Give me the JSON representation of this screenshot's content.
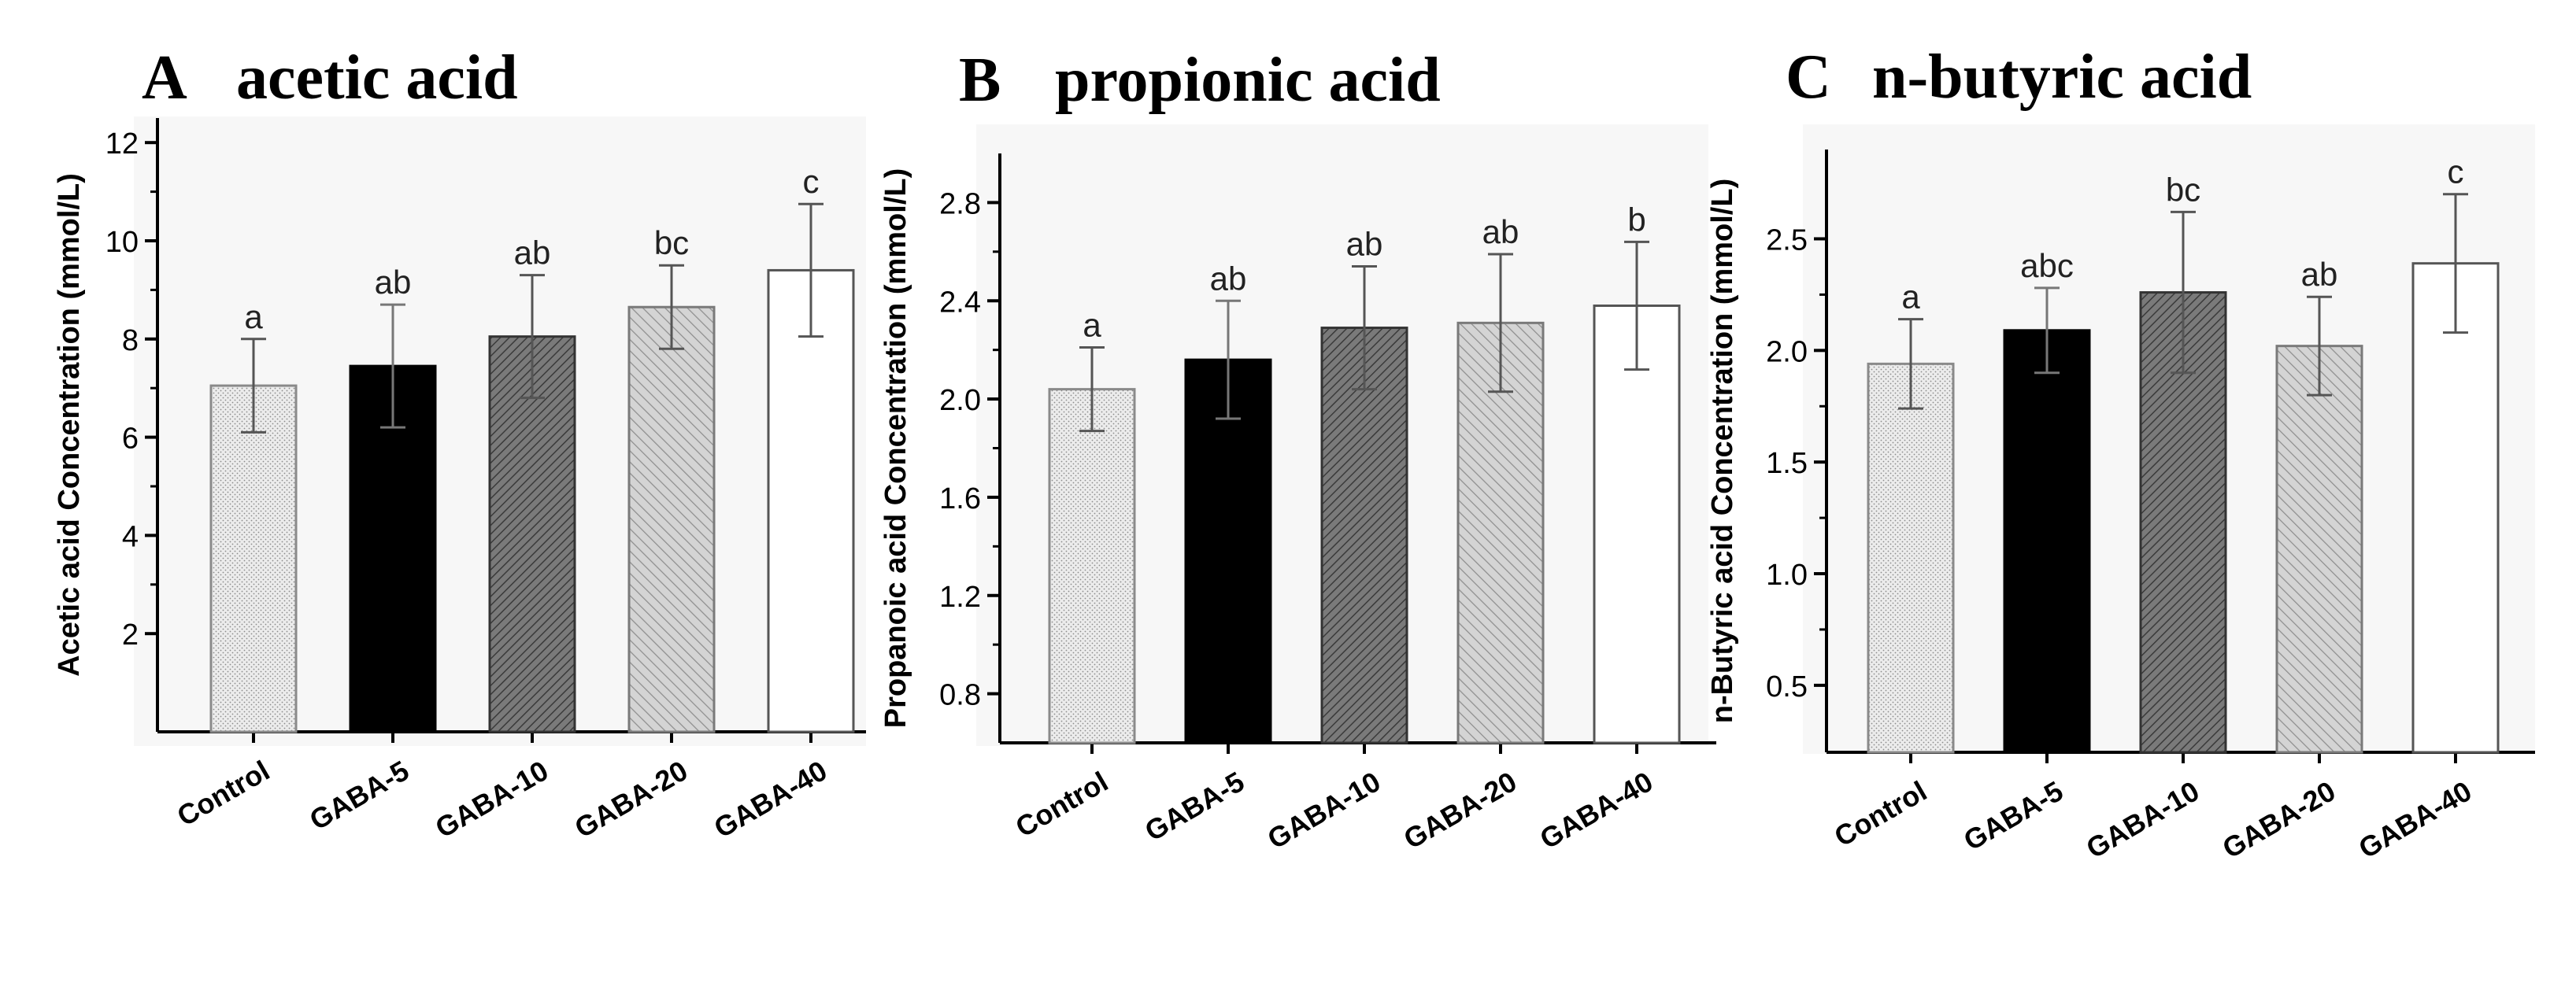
{
  "chart_data": [
    {
      "type": "bar",
      "panel_letter": "A",
      "title": "acetic acid",
      "xlabel": "",
      "ylabel": "Acetic  acid  Concentration (mmol/L)",
      "categories": [
        "Control",
        "GABA-5",
        "GABA-10",
        "GABA-20",
        "GABA-40"
      ],
      "values": [
        7.05,
        7.45,
        8.05,
        8.65,
        9.4
      ],
      "errors": [
        0.95,
        1.25,
        1.25,
        0.85,
        1.35
      ],
      "significance": [
        "a",
        "ab",
        "ab",
        "bc",
        "c"
      ],
      "ylim": [
        0,
        12.5
      ],
      "yticks": [
        2,
        4,
        6,
        8,
        10,
        12
      ],
      "ytick_labels": [
        "2",
        "4",
        "6",
        "8",
        "10",
        "12"
      ],
      "grid": false,
      "legend": "none"
    },
    {
      "type": "bar",
      "panel_letter": "B",
      "title": "propionic acid",
      "xlabel": "",
      "ylabel": "Propanoic  acid  Concentration (mmol/L)",
      "categories": [
        "Control",
        "GABA-5",
        "GABA-10",
        "GABA-20",
        "GABA-40"
      ],
      "values": [
        2.04,
        2.16,
        2.29,
        2.31,
        2.38
      ],
      "errors": [
        0.17,
        0.24,
        0.25,
        0.28,
        0.26
      ],
      "significance": [
        "a",
        "ab",
        "ab",
        "ab",
        "b"
      ],
      "ylim": [
        0.6,
        3.0
      ],
      "yticks": [
        0.8,
        1.2,
        1.6,
        2.0,
        2.4,
        2.8
      ],
      "ytick_labels": [
        "0.8",
        "1.2",
        "1.6",
        "2.0",
        "2.4",
        "2.8"
      ],
      "grid": false,
      "legend": "none"
    },
    {
      "type": "bar",
      "panel_letter": "C",
      "title": "n-butyric acid",
      "xlabel": "",
      "ylabel": "n-Butyric  acid  Concentration (mmol/L)",
      "categories": [
        "Control",
        "GABA-5",
        "GABA-10",
        "GABA-20",
        "GABA-40"
      ],
      "values": [
        1.94,
        2.09,
        2.26,
        2.02,
        2.39
      ],
      "errors": [
        0.2,
        0.19,
        0.36,
        0.22,
        0.31
      ],
      "significance": [
        "a",
        "abc",
        "bc",
        "ab",
        "c"
      ],
      "ylim": [
        0.2,
        2.9
      ],
      "yticks": [
        0.5,
        1.0,
        1.5,
        2.0,
        2.5
      ],
      "ytick_labels": [
        "0.5",
        "1.0",
        "1.5",
        "2.0",
        "2.5"
      ],
      "grid": false,
      "legend": "none"
    }
  ],
  "bar_styles": [
    {
      "pattern": "dots",
      "fill": "#e6e6e6",
      "stroke": "#8a8a8a"
    },
    {
      "pattern": "solid",
      "fill": "#000000",
      "stroke": "#000000"
    },
    {
      "pattern": "hatch-dense",
      "fill": "#6e6e6e",
      "stroke": "#333333"
    },
    {
      "pattern": "hatch-light",
      "fill": "#c8c8c8",
      "stroke": "#7a7a7a"
    },
    {
      "pattern": "none",
      "fill": "#ffffff",
      "stroke": "#555555"
    }
  ],
  "colors": {
    "axis": "#000000",
    "error_bar": "#555555",
    "panel_background": "#f7f7f7"
  }
}
